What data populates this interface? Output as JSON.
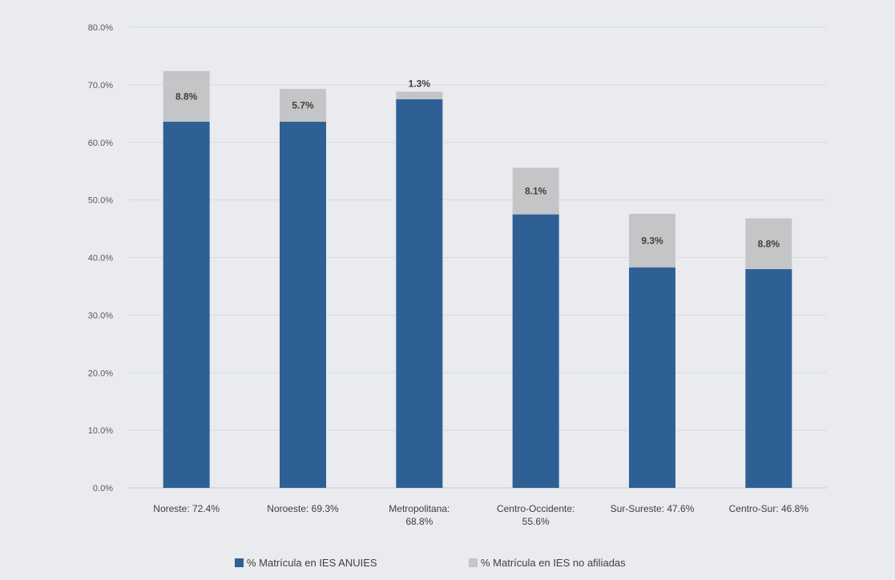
{
  "chart_data": {
    "type": "bar",
    "stacked": true,
    "categories": [
      [
        "Noreste: 72.4%"
      ],
      [
        "Noroeste: 69.3%"
      ],
      [
        "Metropolitana:",
        "68.8%"
      ],
      [
        "Centro-Occidente:",
        "55.6%"
      ],
      [
        "Sur-Sureste: 47.6%"
      ],
      [
        "Centro-Sur: 46.8%"
      ]
    ],
    "series": [
      {
        "name": "% Matrícula en IES ANUIES",
        "color": "#2e6096",
        "values": [
          63.6,
          63.6,
          67.5,
          47.5,
          38.3,
          38.0
        ]
      },
      {
        "name": "% Matrícula en IES no afiliadas",
        "color": "#c3c5c7",
        "values": [
          8.8,
          5.7,
          1.3,
          8.1,
          9.3,
          8.8
        ],
        "labels": [
          "8.8%",
          "5.7%",
          "1.3%",
          "8.1%",
          "9.3%",
          "8.8%"
        ]
      }
    ],
    "yticks": [
      "0.0%",
      "10.0%",
      "20.0%",
      "30.0%",
      "40.0%",
      "50.0%",
      "60.0%",
      "70.0%",
      "80.0%"
    ],
    "ylim": [
      0,
      80
    ],
    "grid": true,
    "legend": "bottom"
  }
}
